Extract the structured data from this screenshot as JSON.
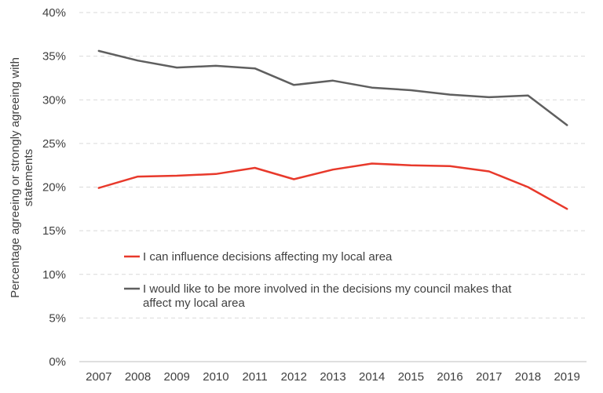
{
  "chart_data": {
    "type": "line",
    "title": "",
    "xlabel": "",
    "ylabel": [
      "Percentage agreeing or strongly agreeing with",
      "statements"
    ],
    "ylim": [
      0,
      40
    ],
    "y_ticks": [
      "0%",
      "5%",
      "10%",
      "15%",
      "20%",
      "25%",
      "30%",
      "35%",
      "40%"
    ],
    "grid": true,
    "legend_position": "inside-bottom-left",
    "categories": [
      "2007",
      "2008",
      "2009",
      "2010",
      "2011",
      "2012",
      "2013",
      "2014",
      "2015",
      "2016",
      "2017",
      "2018",
      "2019"
    ],
    "series": [
      {
        "name_lines": [
          "I can influence decisions affecting my local area"
        ],
        "color": "#e8392b",
        "values": [
          19.9,
          21.2,
          21.3,
          21.5,
          22.2,
          20.9,
          22.0,
          22.7,
          22.5,
          22.4,
          21.8,
          20.0,
          17.5
        ]
      },
      {
        "name_lines": [
          "I would like to be more involved in the decisions my council makes that",
          "affect my local area"
        ],
        "color": "#5f5f5f",
        "values": [
          35.6,
          34.5,
          33.7,
          33.9,
          33.6,
          31.7,
          32.2,
          31.4,
          31.1,
          30.6,
          30.3,
          30.5,
          27.1
        ]
      }
    ]
  }
}
